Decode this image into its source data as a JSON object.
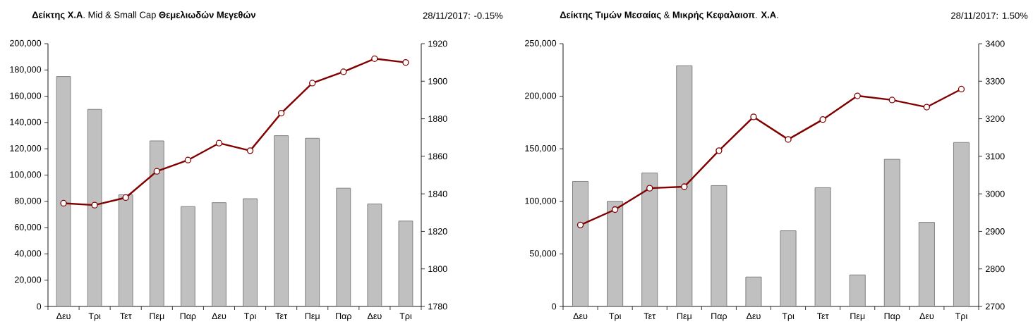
{
  "chart_data": [
    {
      "type": "bar",
      "title": "**Δείκτης** **Χ.Α**. Mid & Small Cap **Θεμελιωδών Μεγεθών**",
      "subtitle": "28/11/2017: -0.15%",
      "categories": [
        "Δευ",
        "Τρι",
        "Τετ",
        "Πεμ",
        "Παρ",
        "Δευ",
        "Τρι",
        "Τετ",
        "Πεμ",
        "Παρ",
        "Δευ",
        "Τρι"
      ],
      "series": [
        {
          "color": "#c0c0c0",
          "values": [
            175000,
            150000,
            85000,
            126000,
            76000,
            79000,
            82000,
            130000,
            128000,
            90000,
            78000,
            65000
          ]
        },
        {
          "type": "line",
          "axis": "y2",
          "color": "#800000",
          "values": [
            1835,
            1834,
            1838,
            1852,
            1858,
            1867,
            1863,
            1883,
            1899,
            1905,
            1912,
            1910
          ]
        }
      ],
      "marker": "circle",
      "line_style": "solid",
      "ylim": [
        0,
        200000
      ],
      "yticks": [
        {
          "value": 0,
          "label": "0"
        },
        {
          "value": 20000,
          "label": "20,000"
        },
        {
          "value": 40000,
          "label": "40,000"
        },
        {
          "value": 60000,
          "label": "60,000"
        },
        {
          "value": 80000,
          "label": "80,000"
        },
        {
          "value": 100000,
          "label": "100,000"
        },
        {
          "value": 120000,
          "label": "120,000"
        },
        {
          "value": 140000,
          "label": "140,000"
        },
        {
          "value": 160000,
          "label": "160,000"
        },
        {
          "value": 180000,
          "label": "180,000"
        },
        {
          "value": 200000,
          "label": "200,000"
        }
      ],
      "y2lim": [
        1780,
        1920
      ],
      "y2ticks": [
        1780,
        1800,
        1820,
        1840,
        1860,
        1880,
        1900,
        1920
      ]
    },
    {
      "type": "bar",
      "title": "**Δείκτης Τιμών Μεσαίας** & **Μικρής Κεφαλαιοπ**. **Χ.Α**.",
      "subtitle": "28/11/2017: 1.50%",
      "categories": [
        "Δευ",
        "Τρι",
        "Τετ",
        "Πεμ",
        "Παρ",
        "Δευ",
        "Τρι",
        "Τετ",
        "Πεμ",
        "Παρ",
        "Δευ",
        "Τρι"
      ],
      "series": [
        {
          "color": "#c0c0c0",
          "values": [
            119000,
            100000,
            127000,
            229000,
            115000,
            28000,
            72000,
            113000,
            30000,
            140000,
            80000,
            156000
          ]
        },
        {
          "type": "line",
          "axis": "y2",
          "color": "#800000",
          "values": [
            2917,
            2958,
            3015,
            3019,
            3115,
            3205,
            3145,
            3198,
            3261,
            3250,
            3231,
            3279
          ]
        }
      ],
      "marker": "circle",
      "line_style": "solid",
      "ylim": [
        0,
        250000
      ],
      "yticks": [
        {
          "value": 0,
          "label": "0"
        },
        {
          "value": 50000,
          "label": "50,000"
        },
        {
          "value": 100000,
          "label": "100,000"
        },
        {
          "value": 150000,
          "label": "150,000"
        },
        {
          "value": 200000,
          "label": "200,000"
        },
        {
          "value": 250000,
          "label": "250,000"
        }
      ],
      "y2lim": [
        2700,
        3400
      ],
      "y2ticks": [
        2700,
        2800,
        2900,
        3000,
        3100,
        3200,
        3300,
        3400
      ]
    }
  ]
}
